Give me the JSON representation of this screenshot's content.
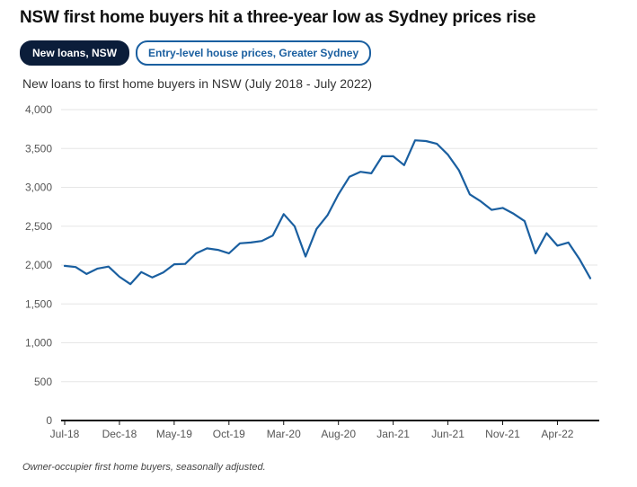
{
  "header": {
    "title": "NSW first home buyers hit a three-year low as Sydney prices rise",
    "tabs": [
      {
        "label": "New loans, NSW",
        "active": true
      },
      {
        "label": "Entry-level house prices, Greater Sydney",
        "active": false
      }
    ],
    "subtitle": "New loans to first home buyers in NSW (July 2018 - July 2022)"
  },
  "footer": {
    "note": "Owner-occupier first home buyers, seasonally adjusted."
  },
  "colors": {
    "line": "#1a5fa0",
    "active_tab": "#0b1d3a",
    "grid": "#e6e6e6",
    "axis": "#111111"
  },
  "chart_data": {
    "type": "line",
    "title": "",
    "xlabel": "",
    "ylabel": "",
    "ylim": [
      0,
      4000
    ],
    "yticks": [
      0,
      500,
      1000,
      1500,
      2000,
      2500,
      3000,
      3500,
      4000
    ],
    "ytick_labels": [
      "0",
      "500",
      "1,000",
      "1,500",
      "2,000",
      "2,500",
      "3,000",
      "3,500",
      "4,000"
    ],
    "xtick_labels": [
      "Jul-18",
      "Dec-18",
      "May-19",
      "Oct-19",
      "Mar-20",
      "Aug-20",
      "Jan-21",
      "Jun-21",
      "Nov-21",
      "Apr-22"
    ],
    "xtick_every": 5,
    "grid": true,
    "categories": [
      "Jul-18",
      "Aug-18",
      "Sep-18",
      "Oct-18",
      "Nov-18",
      "Dec-18",
      "Jan-19",
      "Feb-19",
      "Mar-19",
      "Apr-19",
      "May-19",
      "Jun-19",
      "Jul-19",
      "Aug-19",
      "Sep-19",
      "Oct-19",
      "Nov-19",
      "Dec-19",
      "Jan-20",
      "Feb-20",
      "Mar-20",
      "Apr-20",
      "May-20",
      "Jun-20",
      "Jul-20",
      "Aug-20",
      "Sep-20",
      "Oct-20",
      "Nov-20",
      "Dec-20",
      "Jan-21",
      "Feb-21",
      "Mar-21",
      "Apr-21",
      "May-21",
      "Jun-21",
      "Jul-21",
      "Aug-21",
      "Sep-21",
      "Oct-21",
      "Nov-21",
      "Dec-21",
      "Jan-22",
      "Feb-22",
      "Mar-22",
      "Apr-22",
      "May-22",
      "Jun-22",
      "Jul-22"
    ],
    "series": [
      {
        "values": [
          1990,
          1975,
          1885,
          1955,
          1980,
          1850,
          1755,
          1910,
          1840,
          1905,
          2010,
          2015,
          2150,
          2215,
          2195,
          2150,
          2280,
          2290,
          2310,
          2380,
          2655,
          2500,
          2110,
          2465,
          2640,
          2910,
          3135,
          3200,
          3180,
          3400,
          3400,
          3285,
          3605,
          3595,
          3560,
          3420,
          3220,
          2910,
          2820,
          2710,
          2735,
          2660,
          2565,
          2150,
          2410,
          2250,
          2290,
          2080,
          1830
        ]
      }
    ]
  }
}
